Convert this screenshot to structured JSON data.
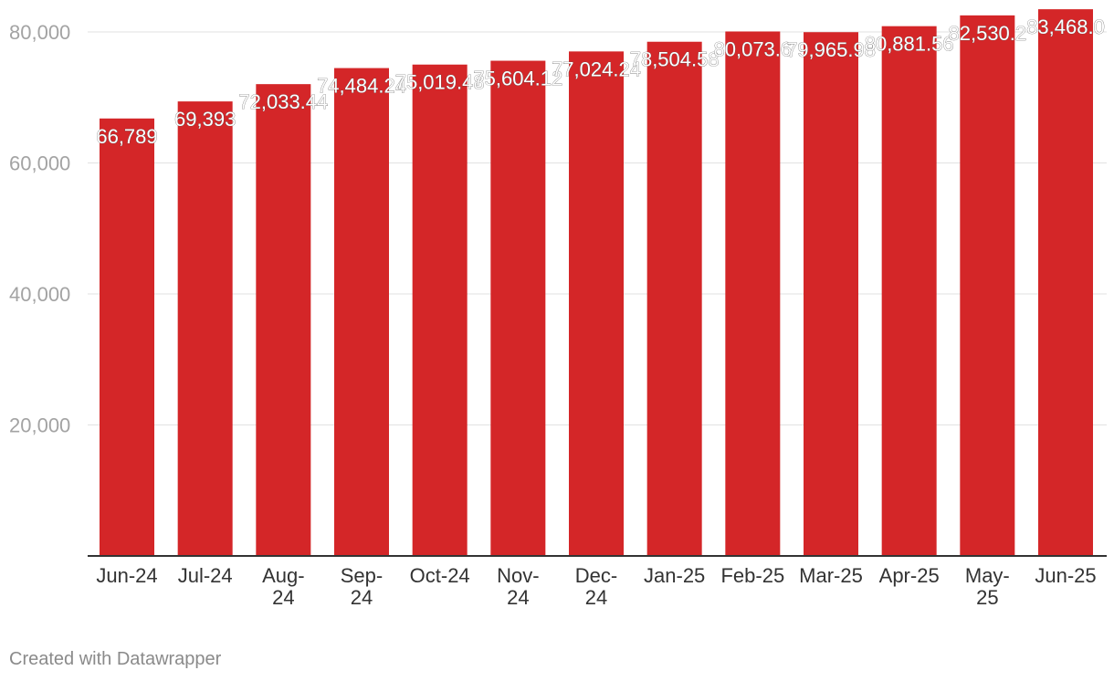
{
  "chart_data": {
    "type": "bar",
    "categories": [
      "Jun-24",
      "Jul-24",
      "Aug-24",
      "Sep-24",
      "Oct-24",
      "Nov-24",
      "Dec-24",
      "Jan-25",
      "Feb-25",
      "Mar-25",
      "Apr-25",
      "May-25",
      "Jun-25"
    ],
    "category_lines": [
      [
        "Jun-24"
      ],
      [
        "Jul-24"
      ],
      [
        "Aug-",
        "24"
      ],
      [
        "Sep-",
        "24"
      ],
      [
        "Oct-24"
      ],
      [
        "Nov-",
        "24"
      ],
      [
        "Dec-",
        "24"
      ],
      [
        "Jan-25"
      ],
      [
        "Feb-25"
      ],
      [
        "Mar-25"
      ],
      [
        "Apr-25"
      ],
      [
        "May-",
        "25"
      ],
      [
        "Jun-25"
      ]
    ],
    "values": [
      66789,
      69393,
      72033.44,
      74484.24,
      75019.48,
      75604.12,
      77024.24,
      78504.58,
      80073.6,
      79965.98,
      80881.56,
      82530.2,
      83468.0
    ],
    "value_labels": [
      "66,789",
      "69,393",
      "72,033.44",
      "74,484.24",
      "75,019.48",
      "75,604.12",
      "77,024.24",
      "78,504.58",
      "80,073.6",
      "79,965.98",
      "80,881.56",
      "82,530.2",
      "83,468.0"
    ],
    "yticks": [
      20000,
      40000,
      60000,
      80000
    ],
    "ytick_labels": [
      "20,000",
      "40,000",
      "60,000",
      "80,000"
    ],
    "ylim": [
      0,
      80000
    ],
    "grid": true,
    "bar_color": "#d42628",
    "title": "",
    "xlabel": "",
    "ylabel": ""
  },
  "footer": "Created with Datawrapper"
}
